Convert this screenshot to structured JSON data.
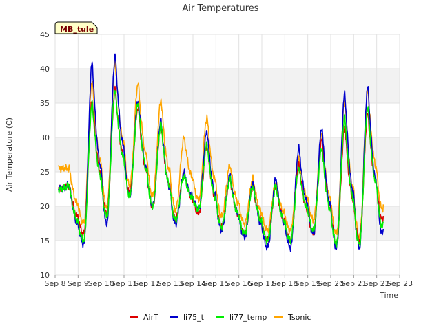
{
  "chart_data": {
    "type": "line",
    "title": "Air Temperatures",
    "xlabel": "Time",
    "ylabel": "Air Temperature (C)",
    "badge": "MB_tule",
    "xlim": [
      8,
      23
    ],
    "ylim": [
      10,
      45
    ],
    "x_ticks": [
      {
        "value": 8,
        "label": "Sep 8"
      },
      {
        "value": 9,
        "label": "Sep 9"
      },
      {
        "value": 10,
        "label": "Sep 10"
      },
      {
        "value": 11,
        "label": "Sep 11"
      },
      {
        "value": 12,
        "label": "Sep 12"
      },
      {
        "value": 13,
        "label": "Sep 13"
      },
      {
        "value": 14,
        "label": "Sep 14"
      },
      {
        "value": 15,
        "label": "Sep 15"
      },
      {
        "value": 16,
        "label": "Sep 16"
      },
      {
        "value": 17,
        "label": "Sep 17"
      },
      {
        "value": 18,
        "label": "Sep 18"
      },
      {
        "value": 19,
        "label": "Sep 19"
      },
      {
        "value": 20,
        "label": "Sep 20"
      },
      {
        "value": 21,
        "label": "Sep 21"
      },
      {
        "value": 22,
        "label": "Sep 22"
      },
      {
        "value": 23,
        "label": "Sep 23"
      }
    ],
    "y_ticks": [
      10,
      15,
      20,
      25,
      30,
      35,
      40,
      45
    ],
    "daily": {
      "days": [
        8,
        9,
        10,
        11,
        12,
        13,
        14,
        15,
        16,
        17,
        18,
        19,
        20,
        21,
        22
      ],
      "AirT": {
        "min": [
          22.5,
          16,
          19,
          22,
          20,
          18,
          19,
          17,
          16,
          15,
          15,
          16,
          14.5,
          15,
          18
        ],
        "max": [
          23,
          35.5,
          37,
          34.5,
          32,
          25,
          29,
          24,
          23,
          23,
          26,
          30,
          31.5,
          33.5,
          35
        ]
      },
      "li75_t": {
        "min": [
          22.5,
          14.5,
          17.5,
          21.5,
          20,
          17.5,
          19.5,
          16.5,
          15.5,
          14,
          14,
          16,
          14,
          14,
          16
        ],
        "max": [
          23,
          41,
          42,
          35.5,
          32.5,
          25,
          31,
          24.5,
          23.5,
          24,
          28.5,
          31.5,
          36.5,
          37.5,
          36.5
        ]
      },
      "li77_temp": {
        "min": [
          22.5,
          15,
          18.5,
          21.5,
          20,
          18,
          19.5,
          17,
          16,
          15,
          15,
          16.5,
          14.5,
          14.5,
          17
        ],
        "max": [
          23,
          35,
          37,
          35,
          32,
          24.5,
          29,
          24,
          23,
          23,
          25.5,
          28.5,
          33,
          34.5,
          36
        ]
      },
      "Tsonic": {
        "min": [
          25.5,
          17.5,
          20,
          23,
          21.5,
          19.5,
          21,
          18.5,
          17.5,
          16.5,
          16.5,
          18,
          16,
          15.5,
          19.5
        ],
        "max": [
          25.5,
          38.5,
          41,
          38,
          35.5,
          30,
          33,
          26,
          24,
          23.5,
          27,
          30.5,
          35.5,
          37,
          39
        ]
      }
    },
    "series": [
      {
        "name": "AirT",
        "color": "#dd0000"
      },
      {
        "name": "li75_t",
        "color": "#0000cc"
      },
      {
        "name": "li77_temp",
        "color": "#00ee00"
      },
      {
        "name": "Tsonic",
        "color": "#ffa500"
      }
    ],
    "end_day": 22.3
  }
}
